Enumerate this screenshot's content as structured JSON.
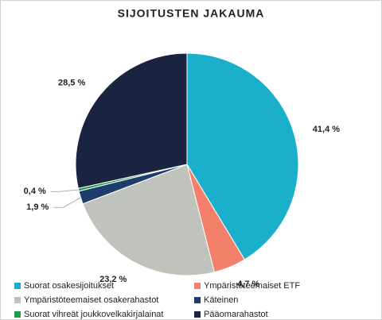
{
  "chart_data": {
    "type": "pie",
    "title": "SIJOITUSTEN JAKAUMA",
    "categories": [
      "Suorat osakesijoitukset",
      "Ympäristöteemaiset ETF",
      "Ympäristöteemaiset osakerahastot",
      "Käteinen",
      "Suorat vihreät joukkovelkakirjalainat",
      "Pääomarahastot"
    ],
    "values": [
      41.4,
      4.7,
      23.2,
      1.9,
      0.4,
      28.5
    ],
    "value_labels": [
      "41,4 %",
      "4,7 %",
      "23,2 %",
      "1,9 %",
      "0,4 %",
      "28,5 %"
    ],
    "colors": [
      "#1aafcb",
      "#f47f6b",
      "#c0c3bb",
      "#1e3d6c",
      "#1f9a4f",
      "#1a2440"
    ]
  }
}
